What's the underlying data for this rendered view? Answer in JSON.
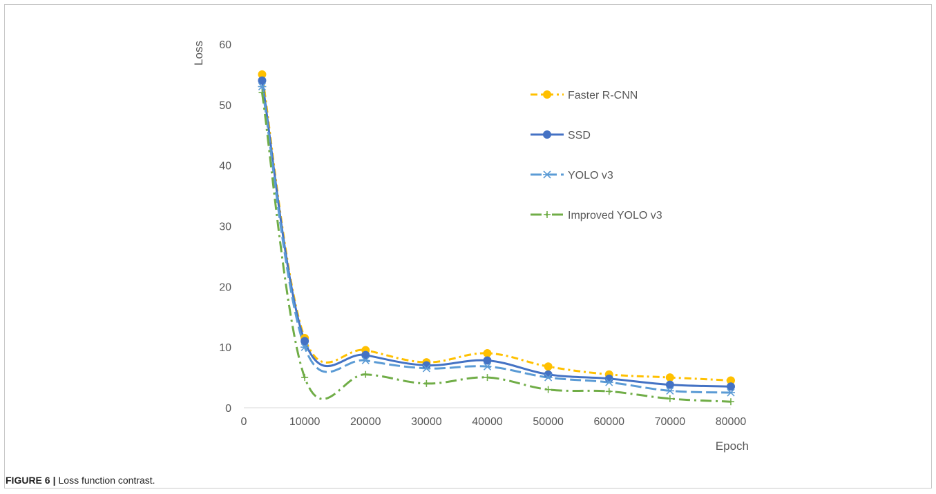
{
  "figure": {
    "label": "FIGURE 6",
    "separator": "|",
    "caption": "Loss function contrast."
  },
  "chart_data": {
    "type": "line",
    "title": "",
    "xlabel": "Epoch",
    "ylabel": "Loss",
    "xlim": [
      0,
      80000
    ],
    "ylim": [
      0,
      60
    ],
    "xticks": [
      0,
      10000,
      20000,
      30000,
      40000,
      50000,
      60000,
      70000,
      80000
    ],
    "yticks": [
      0,
      10,
      20,
      30,
      40,
      50,
      60
    ],
    "grid": false,
    "legend_position": "upper-right-inside",
    "x": [
      3000,
      10000,
      20000,
      30000,
      40000,
      50000,
      60000,
      70000,
      80000
    ],
    "series": [
      {
        "name": "Faster R-CNN",
        "values": [
          55,
          11.5,
          9.5,
          7.5,
          9,
          6.8,
          5.5,
          5,
          4.5
        ],
        "color": "#FFC000",
        "line_style": "dash-dot",
        "marker": "circle"
      },
      {
        "name": "SSD",
        "values": [
          54,
          11,
          8.7,
          7,
          7.8,
          5.5,
          4.8,
          3.8,
          3.5
        ],
        "color": "#4472C4",
        "line_style": "solid",
        "marker": "circle"
      },
      {
        "name": "YOLO v3",
        "values": [
          53,
          10,
          7.8,
          6.5,
          6.8,
          5,
          4.2,
          2.8,
          2.5
        ],
        "color": "#5B9BD5",
        "line_style": "long-dash",
        "marker": "asterisk"
      },
      {
        "name": "Improved YOLO v3",
        "values": [
          52,
          5,
          5.5,
          4,
          5,
          3,
          2.7,
          1.5,
          1
        ],
        "color": "#70AD47",
        "line_style": "long-dash-dot",
        "marker": "plus"
      }
    ]
  }
}
